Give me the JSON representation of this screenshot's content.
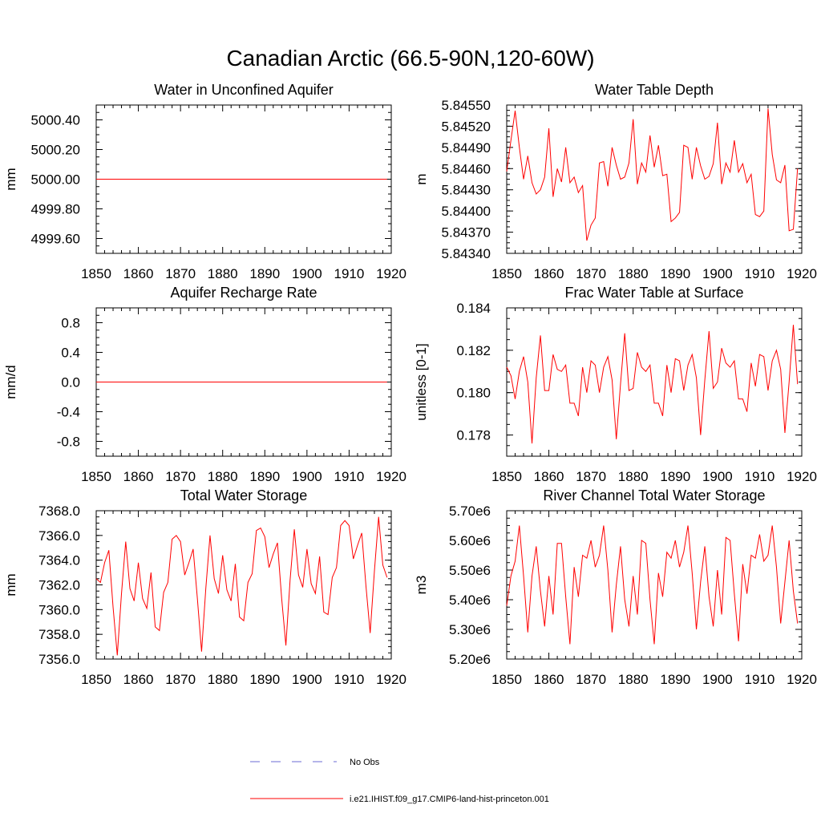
{
  "figure": {
    "title": "Canadian Arctic (66.5-90N,120-60W)"
  },
  "legend": {
    "entries": [
      {
        "label": "No Obs",
        "color": "#6b6bd6",
        "style": "dashed"
      },
      {
        "label": "i.e21.IHIST.f09_g17.CMIP6-land-hist-princeton.001",
        "color": "#ff0000",
        "style": "solid"
      }
    ]
  },
  "chart_data": [
    {
      "type": "line",
      "title": "Water in Unconfined Aquifer",
      "xlabel": "",
      "ylabel": "mm",
      "xlim": [
        1850,
        1920
      ],
      "ylim": [
        4999.5,
        5000.5
      ],
      "xticks": [
        1850,
        1860,
        1870,
        1880,
        1890,
        1900,
        1910,
        1920
      ],
      "xtick_labels": [
        "1850",
        "1860",
        "1870",
        "1880",
        "1890",
        "1900",
        "1910",
        "1920"
      ],
      "yticks": [
        4999.6,
        4999.8,
        5000.0,
        5000.2,
        5000.4
      ],
      "ytick_labels": [
        "4999.60",
        "4999.80",
        "5000.00",
        "5000.20",
        "5000.40"
      ],
      "grid": false,
      "x_start": 1850,
      "x_step": 1,
      "series": [
        {
          "color": "#ff0000",
          "values": [
            5000.0,
            5000.0,
            5000.0,
            5000.0,
            5000.0,
            5000.0,
            5000.0,
            5000.0,
            5000.0,
            5000.0,
            5000.0,
            5000.0,
            5000.0,
            5000.0,
            5000.0,
            5000.0,
            5000.0,
            5000.0,
            5000.0,
            5000.0,
            5000.0,
            5000.0,
            5000.0,
            5000.0,
            5000.0,
            5000.0,
            5000.0,
            5000.0,
            5000.0,
            5000.0,
            5000.0,
            5000.0,
            5000.0,
            5000.0,
            5000.0,
            5000.0,
            5000.0,
            5000.0,
            5000.0,
            5000.0,
            5000.0,
            5000.0,
            5000.0,
            5000.0,
            5000.0,
            5000.0,
            5000.0,
            5000.0,
            5000.0,
            5000.0,
            5000.0,
            5000.0,
            5000.0,
            5000.0,
            5000.0,
            5000.0,
            5000.0,
            5000.0,
            5000.0,
            5000.0,
            5000.0,
            5000.0,
            5000.0,
            5000.0,
            5000.0,
            5000.0,
            5000.0,
            5000.0,
            5000.0,
            5000.0
          ]
        }
      ]
    },
    {
      "type": "line",
      "title": "Water Table Depth",
      "xlabel": "",
      "ylabel": "m",
      "xlim": [
        1850,
        1920
      ],
      "ylim": [
        5.8434,
        5.8455
      ],
      "xticks": [
        1850,
        1860,
        1870,
        1880,
        1890,
        1900,
        1910,
        1920
      ],
      "xtick_labels": [
        "1850",
        "1860",
        "1870",
        "1880",
        "1890",
        "1900",
        "1910",
        "1920"
      ],
      "yticks": [
        5.8434,
        5.8437,
        5.844,
        5.8443,
        5.8446,
        5.8449,
        5.8452,
        5.8455
      ],
      "ytick_labels": [
        "5.84340",
        "5.84370",
        "5.84400",
        "5.84430",
        "5.84460",
        "5.84490",
        "5.84520",
        "5.84550"
      ],
      "grid": false,
      "x_start": 1850,
      "x_step": 1,
      "series": [
        {
          "color": "#ff0000",
          "values": [
            5.84456,
            5.845,
            5.84542,
            5.8449,
            5.84445,
            5.84478,
            5.8444,
            5.84424,
            5.8443,
            5.84448,
            5.84517,
            5.8442,
            5.8446,
            5.84441,
            5.8449,
            5.8444,
            5.84448,
            5.84426,
            5.84436,
            5.84358,
            5.8438,
            5.8439,
            5.84468,
            5.8447,
            5.84435,
            5.8449,
            5.84465,
            5.84445,
            5.84448,
            5.84468,
            5.8453,
            5.84438,
            5.84468,
            5.84455,
            5.84507,
            5.84462,
            5.84493,
            5.8445,
            5.84452,
            5.84385,
            5.8439,
            5.84398,
            5.84493,
            5.8449,
            5.84445,
            5.8449,
            5.84464,
            5.84445,
            5.84449,
            5.84467,
            5.84525,
            5.84438,
            5.84468,
            5.84455,
            5.845,
            5.84455,
            5.84467,
            5.8444,
            5.84452,
            5.84395,
            5.84392,
            5.844,
            5.84545,
            5.8448,
            5.84444,
            5.8444,
            5.84465,
            5.84372,
            5.84374,
            5.8446
          ]
        }
      ]
    },
    {
      "type": "line",
      "title": "Aquifer Recharge Rate",
      "xlabel": "",
      "ylabel": "mm/d",
      "xlim": [
        1850,
        1920
      ],
      "ylim": [
        -1.0,
        1.0
      ],
      "xticks": [
        1850,
        1860,
        1870,
        1880,
        1890,
        1900,
        1910,
        1920
      ],
      "xtick_labels": [
        "1850",
        "1860",
        "1870",
        "1880",
        "1890",
        "1900",
        "1910",
        "1920"
      ],
      "yticks": [
        -0.8,
        -0.4,
        0.0,
        0.4,
        0.8
      ],
      "ytick_labels": [
        "-0.8",
        "-0.4",
        "0.0",
        "0.4",
        "0.8"
      ],
      "grid": false,
      "x_start": 1850,
      "x_step": 1,
      "series": [
        {
          "color": "#ff0000",
          "values": [
            0.0,
            0.0,
            0.0,
            0.0,
            0.0,
            0.0,
            0.0,
            0.0,
            0.0,
            0.0,
            0.0,
            0.0,
            0.0,
            0.0,
            0.0,
            0.0,
            0.0,
            0.0,
            0.0,
            0.0,
            0.0,
            0.0,
            0.0,
            0.0,
            0.0,
            0.0,
            0.0,
            0.0,
            0.0,
            0.0,
            0.0,
            0.0,
            0.0,
            0.0,
            0.0,
            0.0,
            0.0,
            0.0,
            0.0,
            0.0,
            0.0,
            0.0,
            0.0,
            0.0,
            0.0,
            0.0,
            0.0,
            0.0,
            0.0,
            0.0,
            0.0,
            0.0,
            0.0,
            0.0,
            0.0,
            0.0,
            0.0,
            0.0,
            0.0,
            0.0,
            0.0,
            0.0,
            0.0,
            0.0,
            0.0,
            0.0,
            0.0,
            0.0,
            0.0,
            0.0
          ]
        }
      ]
    },
    {
      "type": "line",
      "title": "Frac Water Table at Surface",
      "xlabel": "",
      "ylabel": "unitless [0-1]",
      "xlim": [
        1850,
        1920
      ],
      "ylim": [
        0.177,
        0.184
      ],
      "xticks": [
        1850,
        1860,
        1870,
        1880,
        1890,
        1900,
        1910,
        1920
      ],
      "xtick_labels": [
        "1850",
        "1860",
        "1870",
        "1880",
        "1890",
        "1900",
        "1910",
        "1920"
      ],
      "yticks": [
        0.178,
        0.18,
        0.182,
        0.184
      ],
      "ytick_labels": [
        "0.178",
        "0.180",
        "0.182",
        "0.184"
      ],
      "grid": false,
      "x_start": 1850,
      "x_step": 1,
      "series": [
        {
          "color": "#ff0000",
          "values": [
            0.1812,
            0.1808,
            0.1797,
            0.181,
            0.1817,
            0.1805,
            0.1776,
            0.1807,
            0.1827,
            0.1801,
            0.1801,
            0.1818,
            0.1811,
            0.181,
            0.1813,
            0.1795,
            0.1795,
            0.1789,
            0.1812,
            0.18,
            0.1815,
            0.1813,
            0.18,
            0.1812,
            0.1817,
            0.1806,
            0.1778,
            0.1804,
            0.1828,
            0.1801,
            0.1802,
            0.1819,
            0.1812,
            0.181,
            0.1813,
            0.1795,
            0.1795,
            0.1789,
            0.1813,
            0.18,
            0.1816,
            0.1815,
            0.1801,
            0.1813,
            0.1818,
            0.1807,
            0.178,
            0.1806,
            0.1829,
            0.1802,
            0.1805,
            0.1821,
            0.1814,
            0.1812,
            0.1815,
            0.1797,
            0.1797,
            0.1791,
            0.1814,
            0.1803,
            0.1818,
            0.1817,
            0.1801,
            0.1815,
            0.182,
            0.1811,
            0.1781,
            0.1805,
            0.1832,
            0.1804
          ]
        }
      ]
    },
    {
      "type": "line",
      "title": "Total Water Storage",
      "xlabel": "",
      "ylabel": "mm",
      "xlim": [
        1850,
        1920
      ],
      "ylim": [
        7356.0,
        7368.0
      ],
      "xticks": [
        1850,
        1860,
        1870,
        1880,
        1890,
        1900,
        1910,
        1920
      ],
      "xtick_labels": [
        "1850",
        "1860",
        "1870",
        "1880",
        "1890",
        "1900",
        "1910",
        "1920"
      ],
      "yticks": [
        7356.0,
        7358.0,
        7360.0,
        7362.0,
        7364.0,
        7366.0,
        7368.0
      ],
      "ytick_labels": [
        "7356.0",
        "7358.0",
        "7360.0",
        "7362.0",
        "7364.0",
        "7366.0",
        "7368.0"
      ],
      "grid": false,
      "x_start": 1850,
      "x_step": 1,
      "series": [
        {
          "color": "#ff0000",
          "values": [
            7362.5,
            7362.2,
            7363.8,
            7364.8,
            7360.2,
            7356.3,
            7361.3,
            7365.5,
            7361.7,
            7360.7,
            7363.8,
            7360.9,
            7360.1,
            7363.0,
            7358.6,
            7358.3,
            7361.4,
            7362.2,
            7365.7,
            7366.0,
            7365.5,
            7362.8,
            7363.8,
            7364.9,
            7360.9,
            7356.6,
            7361.7,
            7366.0,
            7362.5,
            7361.3,
            7364.4,
            7361.6,
            7360.7,
            7363.7,
            7359.4,
            7359.1,
            7362.2,
            7362.9,
            7366.4,
            7366.6,
            7365.9,
            7363.4,
            7364.5,
            7365.4,
            7360.9,
            7357.1,
            7362.4,
            7366.5,
            7362.8,
            7361.8,
            7364.9,
            7362.1,
            7361.3,
            7364.3,
            7359.8,
            7359.6,
            7362.6,
            7363.4,
            7366.8,
            7367.2,
            7366.8,
            7364.1,
            7365.2,
            7366.2,
            7361.9,
            7358.1,
            7363.1,
            7367.5,
            7363.6,
            7362.6
          ]
        }
      ]
    },
    {
      "type": "line",
      "title": "River Channel Total Water Storage",
      "xlabel": "",
      "ylabel": "m3",
      "xlim": [
        1850,
        1920
      ],
      "ylim": [
        5200000,
        5700000
      ],
      "xticks": [
        1850,
        1860,
        1870,
        1880,
        1890,
        1900,
        1910,
        1920
      ],
      "xtick_labels": [
        "1850",
        "1860",
        "1870",
        "1880",
        "1890",
        "1900",
        "1910",
        "1920"
      ],
      "yticks": [
        5200000,
        5300000,
        5400000,
        5500000,
        5600000,
        5700000
      ],
      "ytick_labels": [
        "5.20e6",
        "5.30e6",
        "5.40e6",
        "5.50e6",
        "5.60e6",
        "5.70e6"
      ],
      "grid": false,
      "x_start": 1850,
      "x_step": 1,
      "series": [
        {
          "color": "#ff0000",
          "values": [
            5380000,
            5480000,
            5530000,
            5650000,
            5480000,
            5290000,
            5480000,
            5580000,
            5430000,
            5310000,
            5480000,
            5350000,
            5590000,
            5590000,
            5410000,
            5250000,
            5510000,
            5410000,
            5550000,
            5540000,
            5600000,
            5510000,
            5550000,
            5650000,
            5500000,
            5290000,
            5450000,
            5580000,
            5400000,
            5310000,
            5480000,
            5350000,
            5600000,
            5590000,
            5400000,
            5250000,
            5490000,
            5410000,
            5560000,
            5540000,
            5600000,
            5510000,
            5560000,
            5650000,
            5490000,
            5300000,
            5460000,
            5580000,
            5410000,
            5310000,
            5500000,
            5350000,
            5610000,
            5600000,
            5420000,
            5260000,
            5520000,
            5420000,
            5550000,
            5540000,
            5620000,
            5530000,
            5550000,
            5650000,
            5510000,
            5320000,
            5460000,
            5600000,
            5430000,
            5320000
          ]
        }
      ]
    }
  ]
}
